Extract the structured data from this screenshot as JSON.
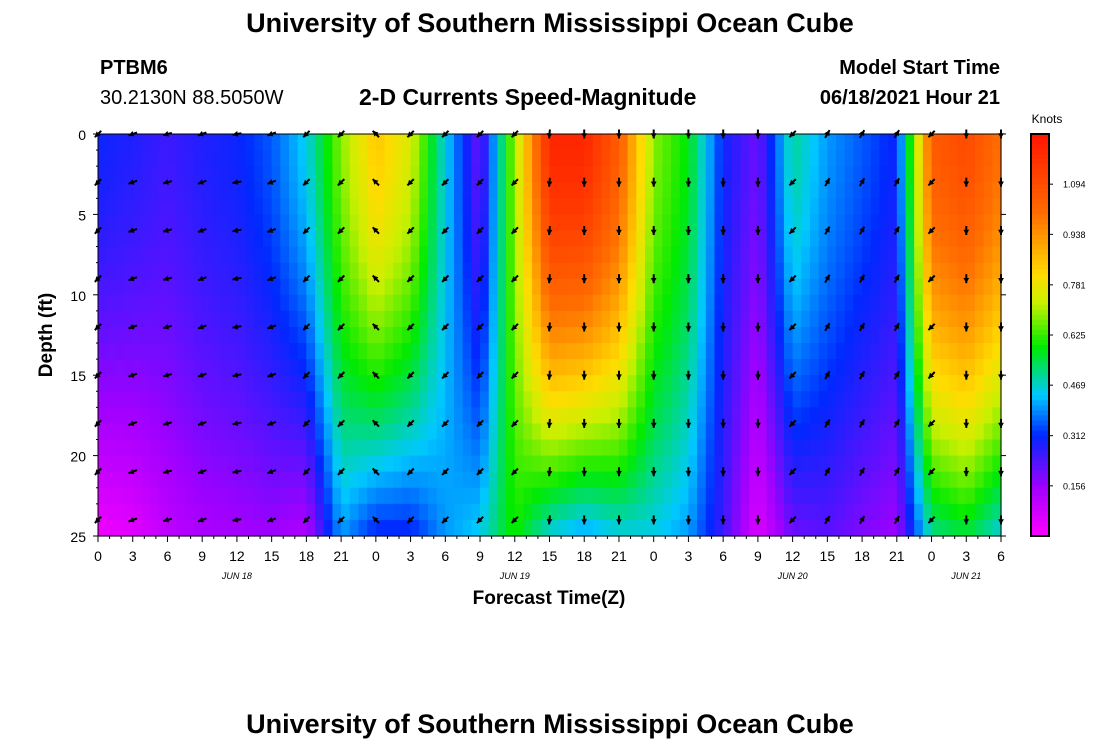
{
  "header": {
    "title": "University of Southern Mississippi Ocean Cube",
    "station": "PTBM6",
    "coords": "30.2130N  88.5050W",
    "plot_title": "2-D Currents Speed-Magnitude",
    "model_start_label": "Model Start Time",
    "model_start_value": "06/18/2021 Hour 21"
  },
  "footer": {
    "title": "University of Southern Mississippi Ocean Cube"
  },
  "chart_data": {
    "type": "heatmap",
    "title": "2-D Currents Speed-Magnitude",
    "xlabel": "Forecast Time(Z)",
    "ylabel": "Depth (ft)",
    "y_ticks": [
      "0",
      "5",
      "10",
      "15",
      "20",
      "25"
    ],
    "ylim": [
      0,
      25
    ],
    "x_tick_labels": [
      "0",
      "3",
      "6",
      "9",
      "12",
      "15",
      "18",
      "21",
      "0",
      "3",
      "6",
      "9",
      "12",
      "15",
      "18",
      "21",
      "0",
      "3",
      "6",
      "9",
      "12",
      "15",
      "18",
      "21",
      "0",
      "3",
      "6"
    ],
    "x_hours": [
      0,
      3,
      6,
      9,
      12,
      15,
      18,
      21,
      24,
      27,
      30,
      33,
      36,
      39,
      42,
      45,
      48,
      51,
      54,
      57,
      60,
      63,
      66,
      69,
      72,
      75,
      78
    ],
    "date_labels": [
      {
        "text": "JUN 18",
        "hour": 12
      },
      {
        "text": "JUN 19",
        "hour": 36
      },
      {
        "text": "JUN 20",
        "hour": 60
      },
      {
        "text": "JUN 21",
        "hour": 75
      }
    ],
    "colorbar": {
      "unit": "Knots",
      "min": 0.0,
      "max": 1.25,
      "ticks": [
        "0.156",
        "0.312",
        "0.469",
        "0.625",
        "0.781",
        "0.938",
        "1.094"
      ]
    },
    "speed_profile_hours": [
      0,
      3,
      6,
      9,
      12,
      15,
      18,
      21,
      24,
      27,
      30,
      33,
      36,
      39,
      42,
      45,
      48,
      51,
      54,
      57,
      60,
      63,
      66,
      69,
      72,
      75,
      78
    ],
    "speed_top_knots": [
      0.3,
      0.28,
      0.25,
      0.28,
      0.3,
      0.35,
      0.45,
      0.68,
      0.85,
      0.75,
      0.45,
      0.2,
      0.7,
      1.2,
      1.2,
      1.05,
      0.68,
      0.58,
      0.3,
      0.2,
      0.5,
      0.4,
      0.35,
      0.3,
      1.05,
      1.1,
      1.0
    ],
    "speed_bottom_knots": [
      0.02,
      0.04,
      0.1,
      0.13,
      0.14,
      0.15,
      0.12,
      0.4,
      0.3,
      0.3,
      0.4,
      0.45,
      0.6,
      0.45,
      0.4,
      0.45,
      0.45,
      0.4,
      0.25,
      0.05,
      0.2,
      0.22,
      0.18,
      0.15,
      0.5,
      0.55,
      0.45
    ],
    "vector_hours": [
      0,
      3,
      6,
      9,
      12,
      15,
      18,
      21,
      24,
      27,
      30,
      33,
      36,
      39,
      42,
      45,
      48,
      51,
      54,
      57,
      60,
      63,
      66,
      69,
      72,
      75,
      78
    ],
    "vector_depths_ft": [
      0,
      3,
      6,
      9,
      12,
      15,
      18,
      21,
      24
    ],
    "direction_note": "arrows show current direction (deg, 0=north/up) per time column",
    "direction_deg": [
      225,
      250,
      255,
      250,
      260,
      250,
      225,
      225,
      315,
      225,
      225,
      225,
      225,
      185,
      180,
      180,
      180,
      180,
      180,
      180,
      225,
      30,
      30,
      30,
      225,
      180,
      180
    ]
  }
}
